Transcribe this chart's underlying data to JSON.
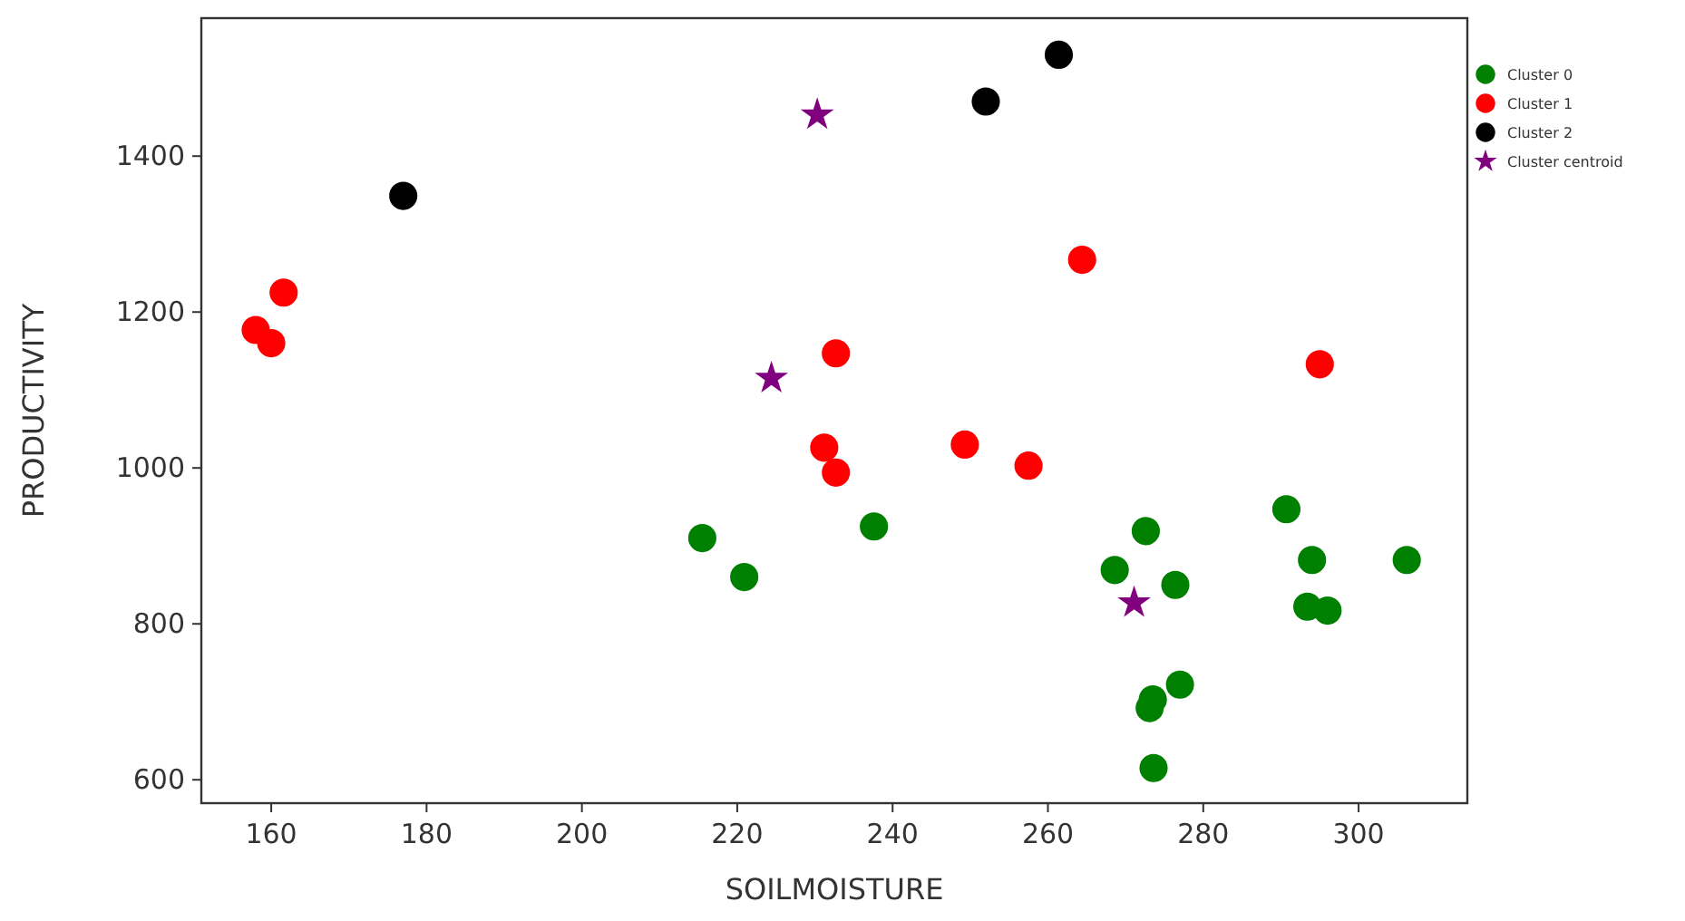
{
  "chart_data": {
    "type": "scatter",
    "xlabel": "SOILMOISTURE",
    "ylabel": "PRODUCTIVITY",
    "xlim": [
      151,
      314
    ],
    "xticks": [
      160,
      180,
      200,
      220,
      240,
      260,
      280,
      300
    ],
    "ylim": [
      570,
      1577
    ],
    "yticks": [
      600,
      800,
      1000,
      1200,
      1400
    ],
    "grid": false,
    "legend": "top right",
    "series": [
      {
        "name": "Cluster 0",
        "color": "#008000",
        "marker": "circle",
        "x": [
          215.5,
          220.9,
          237.6,
          272.6,
          268.6,
          276.4,
          290.7,
          294,
          306.2,
          293.4,
          296,
          277,
          273.5,
          273.1,
          273.6
        ],
        "values": [
          910,
          860,
          925,
          919,
          869,
          850,
          947,
          882,
          882,
          822,
          817,
          722,
          703,
          692,
          615
        ]
      },
      {
        "name": "Cluster 1",
        "color": "#ff0000",
        "marker": "circle",
        "x": [
          158,
          160,
          161.6,
          232.7,
          231.2,
          232.7,
          264.4,
          295,
          249.3,
          257.5
        ],
        "values": [
          1177,
          1160,
          1225,
          1147,
          1026,
          994,
          1267,
          1133,
          1030,
          1003
        ]
      },
      {
        "name": "Cluster 2",
        "color": "#000000",
        "marker": "circle",
        "x": [
          177,
          252,
          261.4
        ],
        "values": [
          1349,
          1470,
          1530
        ]
      },
      {
        "name": "Cluster centroid",
        "color": "#800080",
        "marker": "star",
        "x": [
          230.3,
          224.4,
          271.1
        ],
        "values": [
          1453,
          1115,
          827
        ]
      }
    ]
  }
}
